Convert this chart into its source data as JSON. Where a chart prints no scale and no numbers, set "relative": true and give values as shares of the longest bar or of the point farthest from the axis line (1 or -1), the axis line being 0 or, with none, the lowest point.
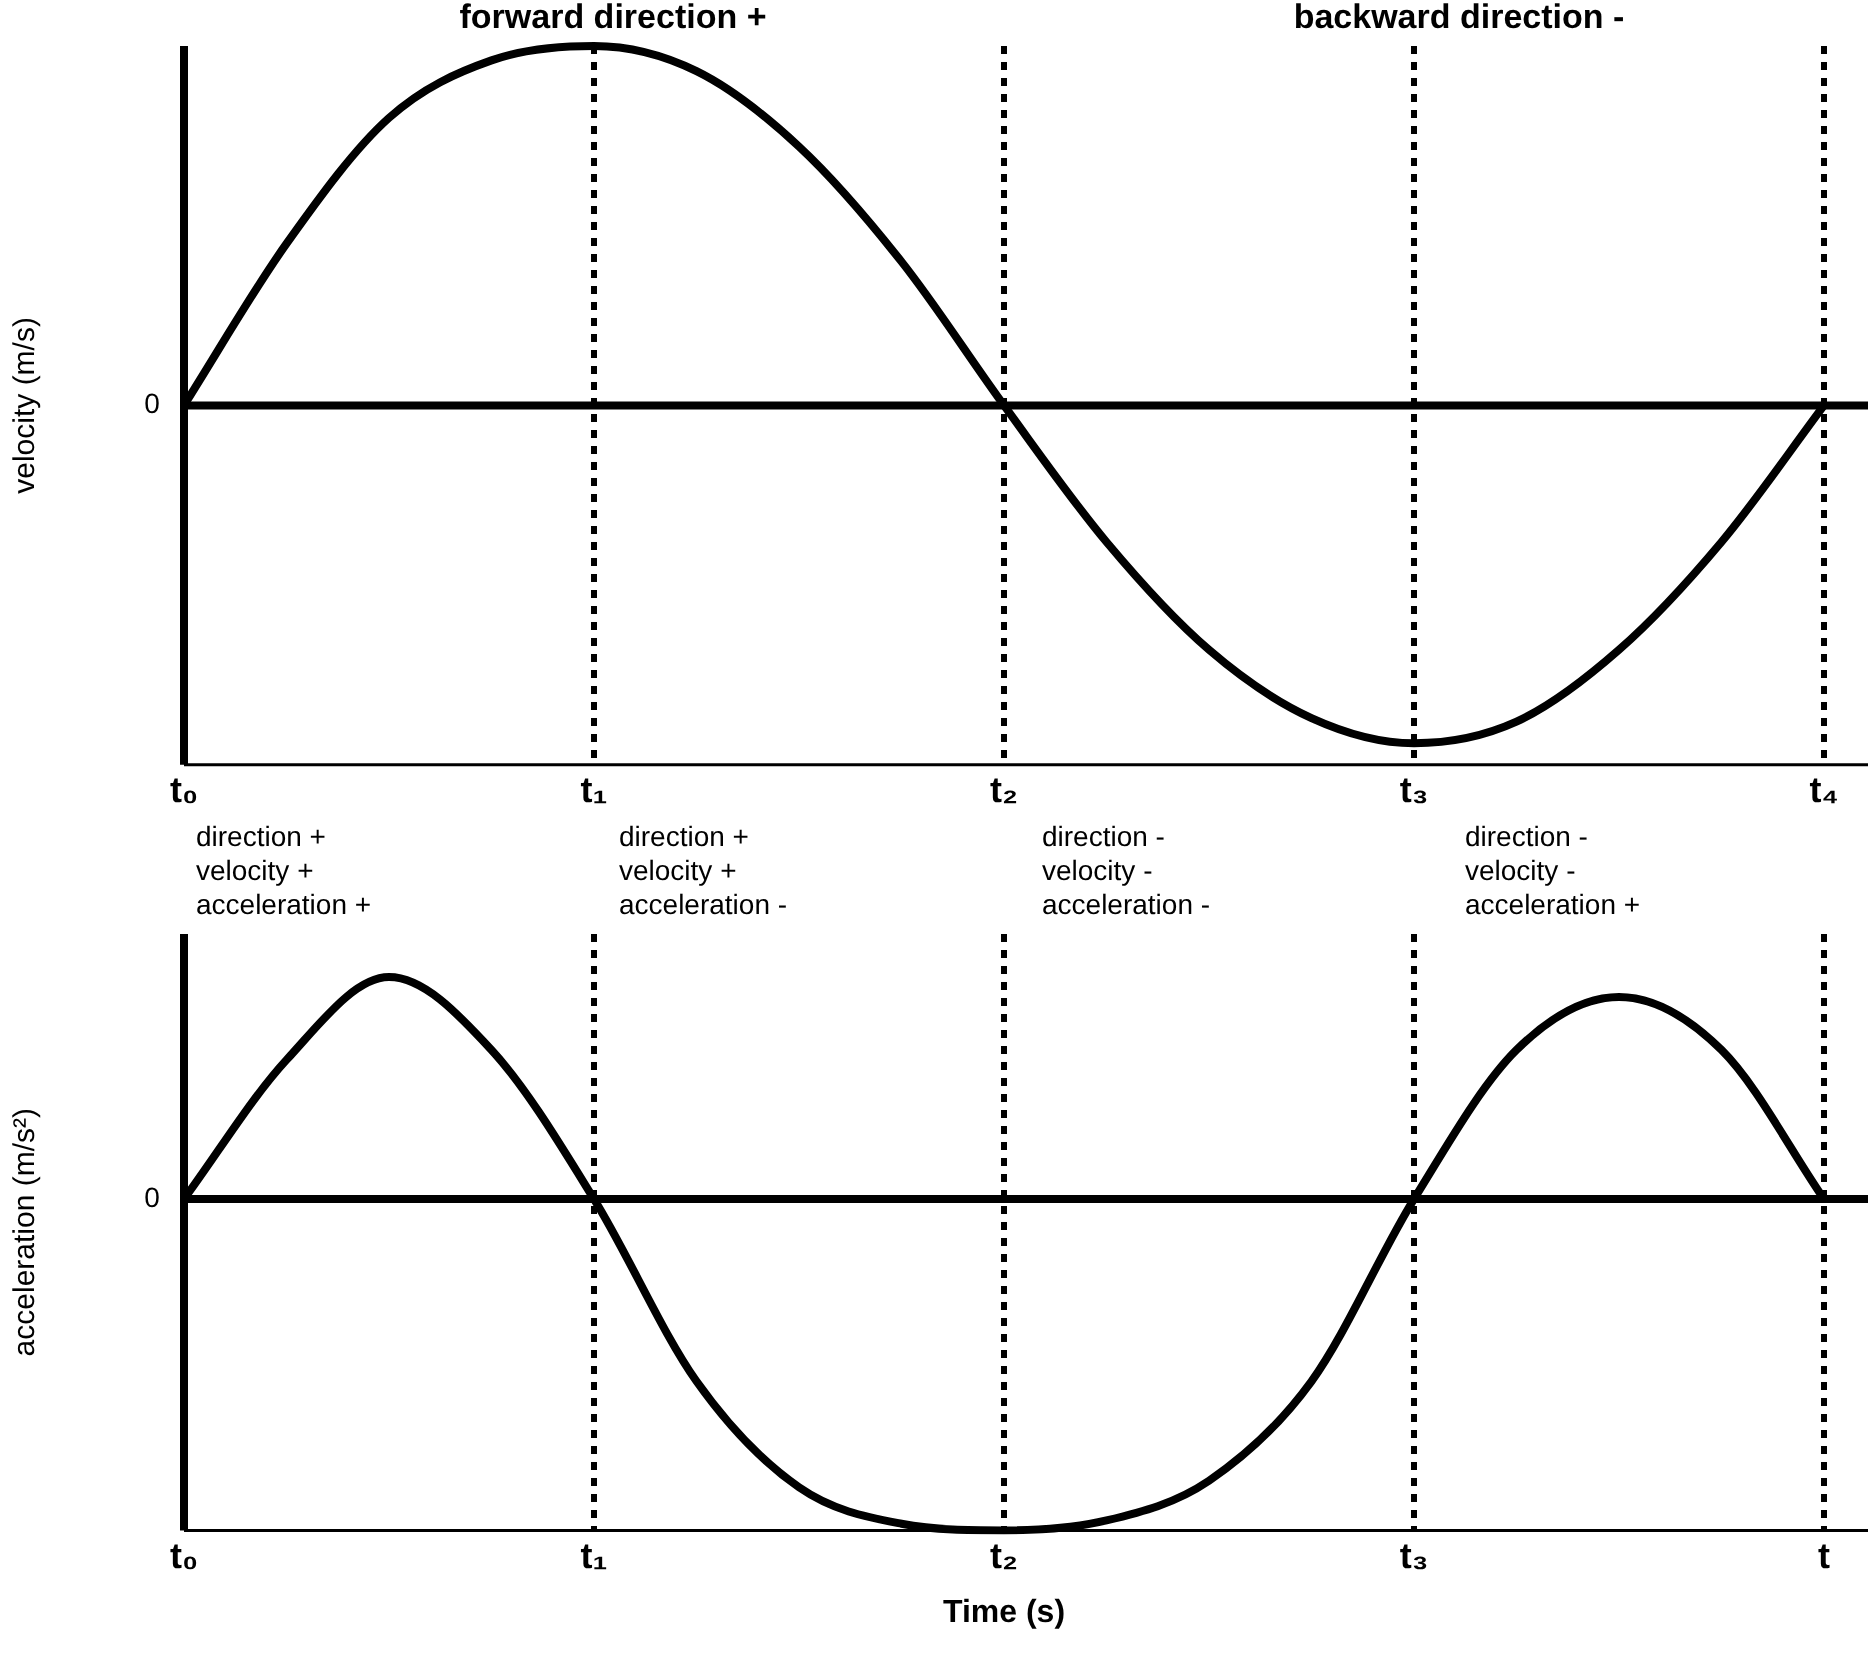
{
  "chart_data": [
    {
      "type": "line",
      "relative": true,
      "ylabel": "velocity (m/s)",
      "annotations": [
        "forward direction +",
        "backward direction -",
        {
          "text": "0",
          "x": "t₀",
          "y": 0
        }
      ],
      "categories": [
        "t₀",
        null,
        null,
        null,
        "t₁",
        null,
        null,
        null,
        "t₂",
        null,
        null,
        null,
        "t₃",
        null,
        null,
        null,
        "t₄"
      ],
      "series": [
        {
          "color": "#000000",
          "values": [
            0,
            0.45,
            0.8,
            0.96,
            1,
            0.93,
            0.72,
            0.4,
            0,
            -0.38,
            -0.68,
            -0.87,
            -0.94,
            -0.88,
            -0.68,
            -0.38,
            0
          ]
        }
      ],
      "ref_lines": [
        {
          "axis": "x",
          "value": "t₁",
          "line_style": "dotted"
        },
        {
          "axis": "x",
          "value": "t₂",
          "line_style": "dotted"
        },
        {
          "axis": "x",
          "value": "t₃",
          "line_style": "dotted"
        },
        {
          "axis": "x",
          "value": "t₄",
          "line_style": "dotted"
        }
      ],
      "grid": false,
      "legend": false,
      "marker": "none",
      "line_style": "solid"
    },
    {
      "type": "line",
      "relative": true,
      "ylabel": "acceleration (m/s²)",
      "xlabel": "Time (s)",
      "annotations": [
        "direction +\nvelocity +\nacceleration +",
        "direction +\nvelocity +\nacceleration -",
        "direction -\nvelocity -\nacceleration -",
        "direction -\nvelocity -\nacceleration +",
        {
          "text": "0",
          "x": "t₀",
          "y": 0
        }
      ],
      "categories": [
        "t₀",
        null,
        null,
        null,
        "t₁",
        null,
        null,
        null,
        "t₂",
        null,
        null,
        null,
        "t₃",
        null,
        null,
        null,
        "t"
      ],
      "series": [
        {
          "color": "#000000",
          "values": [
            0,
            0.42,
            0.67,
            0.45,
            0,
            -0.55,
            -0.87,
            -0.98,
            -1,
            -0.97,
            -0.85,
            -0.55,
            0,
            0.45,
            0.61,
            0.45,
            0
          ]
        }
      ],
      "ref_lines": [
        {
          "axis": "x",
          "value": "t₁",
          "line_style": "dotted"
        },
        {
          "axis": "x",
          "value": "t₂",
          "line_style": "dotted"
        },
        {
          "axis": "x",
          "value": "t₃",
          "line_style": "dotted"
        },
        {
          "axis": "x",
          "value": "t",
          "line_style": "dotted"
        }
      ],
      "grid": false,
      "legend": false,
      "marker": "none",
      "line_style": "solid"
    }
  ]
}
